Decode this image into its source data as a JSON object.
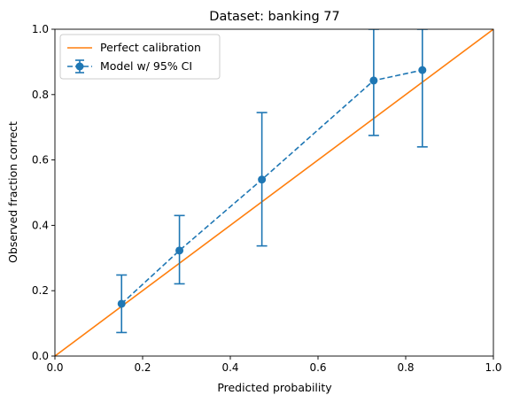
{
  "chart_data": {
    "type": "line",
    "title": "Dataset: banking 77",
    "xlabel": "Predicted probability",
    "ylabel": "Observed fraction correct",
    "xlim": [
      0,
      1
    ],
    "ylim": [
      0,
      1
    ],
    "xticks": [
      "0.0",
      "0.2",
      "0.4",
      "0.6",
      "0.8",
      "1.0"
    ],
    "yticks": [
      "0.0",
      "0.2",
      "0.4",
      "0.6",
      "0.8",
      "1.0"
    ],
    "grid": false,
    "legend_placement": "top-left",
    "series": [
      {
        "name": "Perfect calibration",
        "style": "solid",
        "color": "#ff7f0e",
        "x": [
          0,
          1
        ],
        "y": [
          0,
          1
        ]
      },
      {
        "name": "Model w/ 95% CI",
        "style": "dashed-with-markers",
        "color": "#1f77b4",
        "x": [
          0.152,
          0.284,
          0.472,
          0.727,
          0.838
        ],
        "y": [
          0.16,
          0.323,
          0.54,
          0.843,
          0.875
        ],
        "ci_low": [
          0.072,
          0.221,
          0.337,
          0.675,
          0.64
        ],
        "ci_high": [
          0.248,
          0.43,
          0.745,
          1.0,
          1.0
        ]
      }
    ]
  }
}
